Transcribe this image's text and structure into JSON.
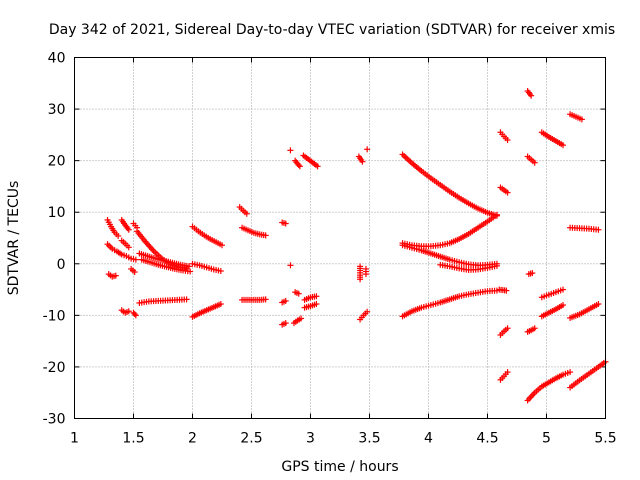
{
  "chart_data": {
    "type": "scatter",
    "title": "Day 342 of 2021, Sidereal Day-to-day VTEC variation (SDTVAR) for receiver xmis",
    "xlabel": "GPS time / hours",
    "ylabel": "SDTVAR / TECUs",
    "xlim": [
      1,
      5.5
    ],
    "ylim": [
      -30,
      40
    ],
    "x_ticks": [
      "1",
      "1.5",
      "2",
      "2.5",
      "3",
      "3.5",
      "4",
      "4.5",
      "5",
      "5.5"
    ],
    "y_ticks": [
      "-30",
      "-20",
      "-10",
      "0",
      "10",
      "20",
      "30",
      "40"
    ],
    "grid": true,
    "marker": "+",
    "color": "#ff0000",
    "series": [
      {
        "name": "s01",
        "x": [
          1.28,
          1.31,
          1.34,
          1.37
        ],
        "y": [
          8.5,
          7.2,
          6.1,
          5.4
        ]
      },
      {
        "name": "s02",
        "x": [
          1.28,
          1.32,
          1.36,
          1.4,
          1.44,
          1.48,
          1.52
        ],
        "y": [
          3.8,
          2.9,
          2.4,
          1.8,
          1.5,
          1.0,
          0.8
        ]
      },
      {
        "name": "s03",
        "x": [
          1.29,
          1.32,
          1.35
        ],
        "y": [
          -2.0,
          -2.5,
          -2.3
        ]
      },
      {
        "name": "s04",
        "x": [
          1.4,
          1.43,
          1.46
        ],
        "y": [
          8.5,
          7.5,
          6.6
        ]
      },
      {
        "name": "s05",
        "x": [
          1.5,
          1.53
        ],
        "y": [
          7.8,
          7.0
        ]
      },
      {
        "name": "s06",
        "x": [
          1.4,
          1.43,
          1.46
        ],
        "y": [
          4.5,
          3.9,
          3.2
        ]
      },
      {
        "name": "s07",
        "x": [
          1.48,
          1.51
        ],
        "y": [
          -1.0,
          -1.6
        ]
      },
      {
        "name": "s08",
        "x": [
          1.4,
          1.43,
          1.46
        ],
        "y": [
          -9.0,
          -9.5,
          -9.2
        ]
      },
      {
        "name": "s09",
        "x": [
          1.5,
          1.52
        ],
        "y": [
          -9.5,
          -10.0
        ]
      },
      {
        "name": "s10",
        "x": [
          1.53,
          1.6,
          1.67,
          1.74,
          1.81,
          1.88,
          1.95
        ],
        "y": [
          6.3,
          4.3,
          2.5,
          1.0,
          0.0,
          -0.6,
          -0.8
        ]
      },
      {
        "name": "s11",
        "x": [
          1.55,
          1.62,
          1.69,
          1.76,
          1.83,
          1.9,
          1.97
        ],
        "y": [
          2.0,
          1.5,
          1.0,
          0.6,
          0.2,
          -0.2,
          -0.5
        ]
      },
      {
        "name": "s12",
        "x": [
          1.57,
          1.64,
          1.71,
          1.78,
          1.85,
          1.92,
          1.98
        ],
        "y": [
          0.8,
          0.3,
          -0.2,
          -0.6,
          -1.0,
          -1.3,
          -1.5
        ]
      },
      {
        "name": "s13",
        "x": [
          1.55,
          1.63,
          1.71,
          1.79,
          1.87,
          1.95
        ],
        "y": [
          -7.6,
          -7.3,
          -7.2,
          -7.1,
          -7.0,
          -6.9
        ]
      },
      {
        "name": "s14",
        "x": [
          2.0,
          2.05,
          2.1,
          2.15,
          2.2,
          2.25
        ],
        "y": [
          7.2,
          6.3,
          5.5,
          4.8,
          4.2,
          3.6
        ]
      },
      {
        "name": "s15",
        "x": [
          2.0,
          2.06,
          2.12,
          2.18,
          2.24
        ],
        "y": [
          0.0,
          -0.3,
          -0.7,
          -1.1,
          -1.4
        ]
      },
      {
        "name": "s16",
        "x": [
          2.0,
          2.06,
          2.12,
          2.18,
          2.24
        ],
        "y": [
          -10.3,
          -9.6,
          -9.0,
          -8.4,
          -7.8
        ]
      },
      {
        "name": "s17",
        "x": [
          2.4,
          2.43,
          2.46
        ],
        "y": [
          11.0,
          10.3,
          9.7
        ]
      },
      {
        "name": "s18",
        "x": [
          2.42,
          2.47,
          2.52,
          2.57,
          2.62
        ],
        "y": [
          7.0,
          6.5,
          6.0,
          5.7,
          5.5
        ]
      },
      {
        "name": "s19",
        "x": [
          2.42,
          2.47,
          2.52,
          2.57,
          2.62
        ],
        "y": [
          -7.0,
          -7.0,
          -7.0,
          -7.0,
          -6.9
        ]
      },
      {
        "name": "s20",
        "x": [
          2.76,
          2.79
        ],
        "y": [
          8.0,
          7.8
        ]
      },
      {
        "name": "s21",
        "x": [
          2.76,
          2.79
        ],
        "y": [
          -7.5,
          -7.2
        ]
      },
      {
        "name": "s22",
        "x": [
          2.76,
          2.79
        ],
        "y": [
          -11.8,
          -11.5
        ]
      },
      {
        "name": "s23",
        "x": [
          2.83
        ],
        "y": [
          22.0
        ]
      },
      {
        "name": "s24",
        "x": [
          2.87,
          2.89,
          2.91
        ],
        "y": [
          20.0,
          19.4,
          18.9
        ]
      },
      {
        "name": "s25",
        "x": [
          2.83
        ],
        "y": [
          -0.3
        ]
      },
      {
        "name": "s26",
        "x": [
          2.87,
          2.9
        ],
        "y": [
          -5.5,
          -5.8
        ]
      },
      {
        "name": "s27",
        "x": [
          2.86,
          2.89,
          2.92
        ],
        "y": [
          -11.5,
          -11.0,
          -10.6
        ]
      },
      {
        "name": "s28",
        "x": [
          2.94,
          2.98,
          3.02,
          3.06
        ],
        "y": [
          21.0,
          20.3,
          19.6,
          18.9
        ]
      },
      {
        "name": "s29",
        "x": [
          2.95,
          3.0,
          3.05
        ],
        "y": [
          -7.0,
          -6.5,
          -6.3
        ]
      },
      {
        "name": "s30",
        "x": [
          2.95,
          3.0,
          3.05
        ],
        "y": [
          -8.5,
          -8.2,
          -7.8
        ]
      },
      {
        "name": "s31",
        "x": [
          3.41,
          3.44
        ],
        "y": [
          20.8,
          19.8
        ]
      },
      {
        "name": "s32",
        "x": [
          3.48
        ],
        "y": [
          22.2
        ]
      },
      {
        "name": "s33",
        "x": [
          3.42,
          3.42,
          3.42,
          3.42
        ],
        "y": [
          -0.5,
          -1.3,
          -2.2,
          -3.0
        ]
      },
      {
        "name": "s34",
        "x": [
          3.47,
          3.47
        ],
        "y": [
          -1.0,
          -2.0
        ]
      },
      {
        "name": "s35",
        "x": [
          3.42,
          3.45,
          3.48
        ],
        "y": [
          -10.8,
          -10.0,
          -9.3
        ]
      },
      {
        "name": "s36",
        "x": [
          3.78,
          3.86,
          3.94,
          4.02,
          4.1,
          4.18,
          4.26,
          4.34,
          4.42,
          4.5,
          4.58
        ],
        "y": [
          21.2,
          19.5,
          18.0,
          16.6,
          15.3,
          14.0,
          12.8,
          11.7,
          10.7,
          9.9,
          9.3
        ]
      },
      {
        "name": "s37",
        "x": [
          3.78,
          3.86,
          3.94,
          4.02,
          4.1,
          4.18,
          4.26,
          4.34,
          4.42,
          4.5,
          4.58
        ],
        "y": [
          4.0,
          3.6,
          3.4,
          3.4,
          3.6,
          4.0,
          4.8,
          5.8,
          7.0,
          8.2,
          9.5
        ]
      },
      {
        "name": "s38",
        "x": [
          3.78,
          3.86,
          3.94,
          4.02,
          4.1,
          4.18,
          4.26,
          4.34,
          4.42,
          4.5,
          4.58
        ],
        "y": [
          3.6,
          3.1,
          2.6,
          2.0,
          1.4,
          0.8,
          0.3,
          -0.1,
          -0.3,
          -0.2,
          0.0
        ]
      },
      {
        "name": "s39",
        "x": [
          4.1,
          4.18,
          4.26,
          4.34,
          4.42,
          4.5,
          4.58
        ],
        "y": [
          -0.2,
          -0.5,
          -0.9,
          -1.2,
          -1.1,
          -0.8,
          -0.4
        ]
      },
      {
        "name": "s40",
        "x": [
          3.78,
          3.86,
          3.94,
          4.02,
          4.1,
          4.18,
          4.26,
          4.34,
          4.42,
          4.5,
          4.58
        ],
        "y": [
          -10.2,
          -9.2,
          -8.5,
          -8.0,
          -7.5,
          -6.9,
          -6.3,
          -5.9,
          -5.6,
          -5.3,
          -5.2
        ]
      },
      {
        "name": "s41",
        "x": [
          4.6,
          4.63,
          4.66
        ],
        "y": [
          -5.0,
          -5.1,
          -5.2
        ]
      },
      {
        "name": "s42",
        "x": [
          4.61,
          4.64,
          4.67
        ],
        "y": [
          25.5,
          24.7,
          24.0
        ]
      },
      {
        "name": "s43",
        "x": [
          4.61,
          4.64,
          4.67
        ],
        "y": [
          14.8,
          14.3,
          13.8
        ]
      },
      {
        "name": "s44",
        "x": [
          4.61,
          4.64,
          4.67
        ],
        "y": [
          -13.8,
          -13.1,
          -12.5
        ]
      },
      {
        "name": "s45",
        "x": [
          4.61,
          4.64,
          4.67
        ],
        "y": [
          -22.5,
          -21.8,
          -21.0
        ]
      },
      {
        "name": "s46",
        "x": [
          4.84,
          4.87
        ],
        "y": [
          33.5,
          32.6
        ]
      },
      {
        "name": "s47",
        "x": [
          4.84,
          4.87,
          4.9
        ],
        "y": [
          20.8,
          20.2,
          19.6
        ]
      },
      {
        "name": "s48",
        "x": [
          4.85,
          4.88
        ],
        "y": [
          -2.0,
          -1.8
        ]
      },
      {
        "name": "s49",
        "x": [
          4.84,
          4.87,
          4.9
        ],
        "y": [
          -13.2,
          -12.9,
          -12.5
        ]
      },
      {
        "name": "s50",
        "x": [
          4.84,
          4.9,
          4.96,
          5.02,
          5.08,
          5.14,
          5.2
        ],
        "y": [
          -26.5,
          -25.0,
          -23.8,
          -23.0,
          -22.2,
          -21.5,
          -21.0
        ]
      },
      {
        "name": "s51",
        "x": [
          4.96,
          5.02,
          5.08,
          5.14
        ],
        "y": [
          25.5,
          24.6,
          23.8,
          23.0
        ]
      },
      {
        "name": "s52",
        "x": [
          4.96,
          5.02,
          5.08,
          5.14
        ],
        "y": [
          -6.5,
          -6.0,
          -5.5,
          -5.0
        ]
      },
      {
        "name": "s53",
        "x": [
          4.96,
          5.02,
          5.08,
          5.14
        ],
        "y": [
          -10.2,
          -9.5,
          -8.8,
          -8.0
        ]
      },
      {
        "name": "s54",
        "x": [
          5.2,
          5.25,
          5.3
        ],
        "y": [
          29.0,
          28.5,
          28.0
        ]
      },
      {
        "name": "s55",
        "x": [
          5.2,
          5.28,
          5.36,
          5.44
        ],
        "y": [
          7.0,
          6.9,
          6.8,
          6.6
        ]
      },
      {
        "name": "s56",
        "x": [
          5.2,
          5.28,
          5.36,
          5.44
        ],
        "y": [
          -10.5,
          -9.8,
          -8.8,
          -7.8
        ]
      },
      {
        "name": "s57",
        "x": [
          5.2,
          5.28,
          5.36,
          5.44,
          5.5
        ],
        "y": [
          -24.0,
          -22.6,
          -21.3,
          -20.0,
          -19.0
        ]
      }
    ]
  }
}
